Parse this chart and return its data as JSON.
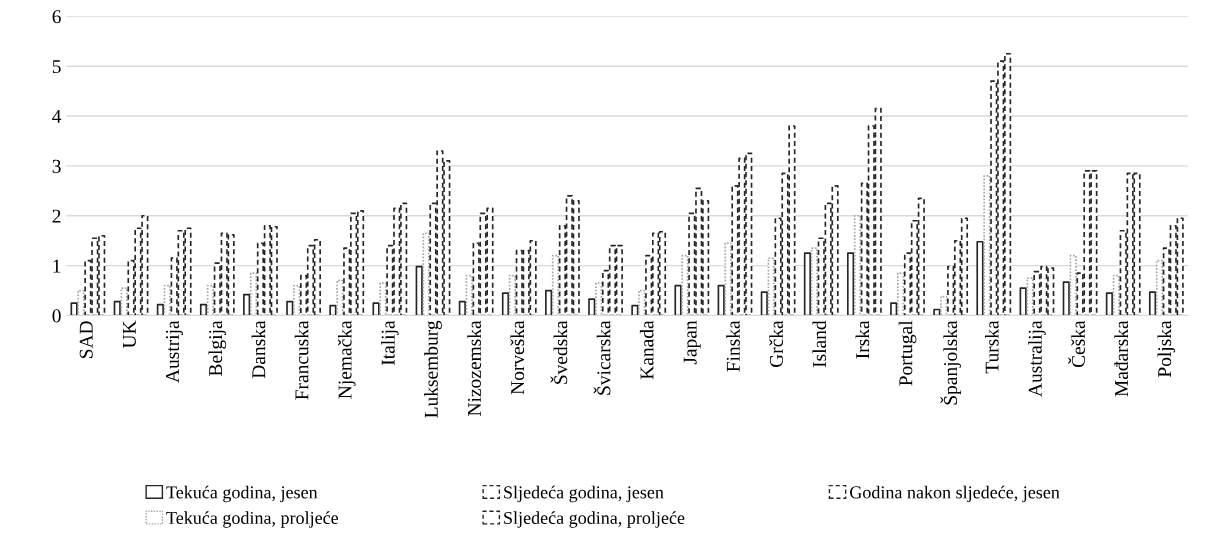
{
  "chart_data": {
    "type": "bar",
    "categories": [
      "SAD",
      "UK",
      "Austrija",
      "Belgija",
      "Danska",
      "Francuska",
      "Njemačka",
      "Italija",
      "Luksemburg",
      "Nizozemska",
      "Norveška",
      "Švedska",
      "Švicarska",
      "Kanada",
      "Japan",
      "Finska",
      "Grčka",
      "Island",
      "Irska",
      "Portugal",
      "Španjolska",
      "Turska",
      "Australija",
      "Češka",
      "Mađarska",
      "Poljska"
    ],
    "series": [
      {
        "name": "Tekuća godina, jesen",
        "color": "#262626",
        "line_style": "solid",
        "values": [
          0.25,
          0.28,
          0.22,
          0.22,
          0.42,
          0.28,
          0.2,
          0.25,
          0.98,
          0.28,
          0.45,
          0.5,
          0.33,
          0.2,
          0.6,
          0.6,
          0.47,
          1.25,
          1.25,
          0.25,
          0.12,
          1.48,
          0.55,
          0.67,
          0.45,
          0.47
        ]
      },
      {
        "name": "Tekuća godina, proljeće",
        "color": "#a6a6a6",
        "line_style": "dotted",
        "values": [
          0.5,
          0.55,
          0.6,
          0.6,
          0.85,
          0.6,
          0.7,
          0.65,
          1.65,
          0.8,
          0.8,
          1.2,
          0.65,
          0.5,
          1.2,
          1.45,
          1.15,
          1.35,
          2.0,
          0.85,
          0.38,
          2.8,
          0.75,
          1.2,
          0.8,
          1.1
        ]
      },
      {
        "name": "Sljedeća godina, jesen",
        "color": "#262626",
        "line_style": "dashed",
        "values": [
          1.1,
          1.1,
          1.15,
          1.05,
          1.45,
          0.8,
          1.35,
          1.4,
          2.25,
          1.45,
          1.3,
          1.8,
          0.9,
          1.2,
          2.05,
          2.6,
          1.95,
          1.55,
          2.65,
          1.25,
          0.98,
          4.7,
          0.88,
          0.85,
          1.7,
          1.35
        ]
      },
      {
        "name": "Sljedeća godina, proljeće",
        "color": "#262626",
        "line_style": "dashed",
        "values": [
          1.55,
          1.75,
          1.7,
          1.65,
          1.8,
          1.4,
          2.05,
          2.15,
          3.3,
          2.05,
          1.3,
          2.4,
          1.4,
          1.65,
          2.55,
          3.15,
          2.85,
          2.25,
          3.8,
          1.9,
          1.5,
          5.1,
          0.98,
          2.9,
          2.85,
          1.8
        ]
      },
      {
        "name": "Godina nakon sljedeće, jesen",
        "color": "#262626",
        "line_style": "dashed",
        "values": [
          1.6,
          2.0,
          1.75,
          1.62,
          1.78,
          1.52,
          2.1,
          2.25,
          3.1,
          2.15,
          1.5,
          2.3,
          1.4,
          1.68,
          2.3,
          3.25,
          3.8,
          2.6,
          4.15,
          2.35,
          1.95,
          5.25,
          0.95,
          2.9,
          2.85,
          1.95
        ]
      }
    ],
    "ylim": [
      0,
      6
    ],
    "yticks": [
      0,
      1,
      2,
      3,
      4,
      5,
      6
    ],
    "grid": "y",
    "legend": "bottom"
  }
}
